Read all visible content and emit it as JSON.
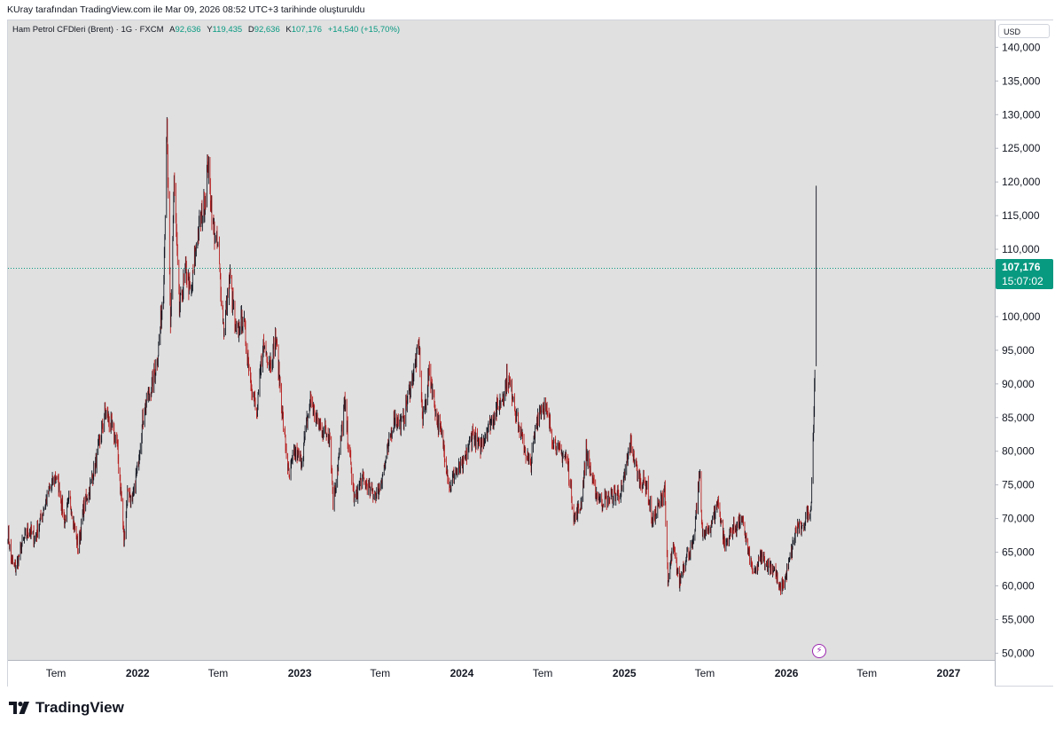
{
  "caption": "KUray tarafından TradingView.com ile Mar 09, 2026 08:52 UTC+3 tarihinde oluşturuldu",
  "legend": {
    "symbol": "Ham Petrol CFDleri (Brent) · 1G · FXCM",
    "open_label": "A",
    "open": "92,636",
    "high_label": "Y",
    "high": "119,435",
    "low_label": "D",
    "low": "92,636",
    "close_label": "K",
    "close": "107,176",
    "change": "+14,540 (+15,70%)"
  },
  "currency": "USD",
  "last_price": {
    "value": "107,176",
    "countdown": "15:07:02"
  },
  "brand": {
    "name": "TradingView"
  },
  "colors": {
    "up": "#089981",
    "down": "#f23645",
    "candle": "#131722",
    "background": "#e0e0e0",
    "price_line": "#089981"
  },
  "chart_data": {
    "type": "candlestick",
    "title": "Ham Petrol CFDleri (Brent)",
    "interval": "1G",
    "source": "FXCM",
    "unit": "USD",
    "ylim": [
      49000,
      144000
    ],
    "xlim": [
      "2021-03-15",
      "2027-04-15"
    ],
    "y_ticks": [
      {
        "value": 140000,
        "label": "140,000"
      },
      {
        "value": 135000,
        "label": "135,000"
      },
      {
        "value": 130000,
        "label": "130,000"
      },
      {
        "value": 125000,
        "label": "125,000"
      },
      {
        "value": 120000,
        "label": "120,000"
      },
      {
        "value": 115000,
        "label": "115,000"
      },
      {
        "value": 110000,
        "label": "110,000"
      },
      {
        "value": 105000,
        "label": ""
      },
      {
        "value": 100000,
        "label": "100,000"
      },
      {
        "value": 95000,
        "label": "95,000"
      },
      {
        "value": 90000,
        "label": "90,000"
      },
      {
        "value": 85000,
        "label": "85,000"
      },
      {
        "value": 80000,
        "label": "80,000"
      },
      {
        "value": 75000,
        "label": "75,000"
      },
      {
        "value": 70000,
        "label": "70,000"
      },
      {
        "value": 65000,
        "label": "65,000"
      },
      {
        "value": 60000,
        "label": "60,000"
      },
      {
        "value": 55000,
        "label": "55,000"
      },
      {
        "value": 50000,
        "label": "50,000"
      }
    ],
    "x_ticks": [
      {
        "date": "2021-07-01",
        "label": "Tem",
        "major": false
      },
      {
        "date": "2022-01-01",
        "label": "2022",
        "major": true
      },
      {
        "date": "2022-07-01",
        "label": "Tem",
        "major": false
      },
      {
        "date": "2023-01-01",
        "label": "2023",
        "major": true
      },
      {
        "date": "2023-07-01",
        "label": "Tem",
        "major": false
      },
      {
        "date": "2024-01-01",
        "label": "2024",
        "major": true
      },
      {
        "date": "2024-07-01",
        "label": "Tem",
        "major": false
      },
      {
        "date": "2025-01-01",
        "label": "2025",
        "major": true
      },
      {
        "date": "2025-07-01",
        "label": "Tem",
        "major": false
      },
      {
        "date": "2026-01-01",
        "label": "2026",
        "major": true
      },
      {
        "date": "2026-07-01",
        "label": "Tem",
        "major": false
      },
      {
        "date": "2027-01-01",
        "label": "2027",
        "major": true
      }
    ],
    "last_close": 107176,
    "series": [
      {
        "date": "2021-03-15",
        "close": 68000
      },
      {
        "date": "2021-03-22",
        "close": 64000
      },
      {
        "date": "2021-04-01",
        "close": 62500
      },
      {
        "date": "2021-04-15",
        "close": 66000
      },
      {
        "date": "2021-05-01",
        "close": 68500
      },
      {
        "date": "2021-05-15",
        "close": 67000
      },
      {
        "date": "2021-06-01",
        "close": 71000
      },
      {
        "date": "2021-06-15",
        "close": 74000
      },
      {
        "date": "2021-07-01",
        "close": 76500
      },
      {
        "date": "2021-07-10",
        "close": 74000
      },
      {
        "date": "2021-07-20",
        "close": 69500
      },
      {
        "date": "2021-08-01",
        "close": 73000
      },
      {
        "date": "2021-08-20",
        "close": 65500
      },
      {
        "date": "2021-09-01",
        "close": 71500
      },
      {
        "date": "2021-09-15",
        "close": 74500
      },
      {
        "date": "2021-10-01",
        "close": 79000
      },
      {
        "date": "2021-10-20",
        "close": 86000
      },
      {
        "date": "2021-11-01",
        "close": 84000
      },
      {
        "date": "2021-11-15",
        "close": 81500
      },
      {
        "date": "2021-11-26",
        "close": 72500
      },
      {
        "date": "2021-12-01",
        "close": 66500
      },
      {
        "date": "2021-12-10",
        "close": 74500
      },
      {
        "date": "2021-12-20",
        "close": 72000
      },
      {
        "date": "2022-01-01",
        "close": 78000
      },
      {
        "date": "2022-01-15",
        "close": 86000
      },
      {
        "date": "2022-02-01",
        "close": 89500
      },
      {
        "date": "2022-02-15",
        "close": 94000
      },
      {
        "date": "2022-02-28",
        "close": 104000
      },
      {
        "date": "2022-03-08",
        "close": 128000
      },
      {
        "date": "2022-03-16",
        "close": 98000
      },
      {
        "date": "2022-03-24",
        "close": 120000
      },
      {
        "date": "2022-04-05",
        "close": 101000
      },
      {
        "date": "2022-04-20",
        "close": 107000
      },
      {
        "date": "2022-05-01",
        "close": 103000
      },
      {
        "date": "2022-05-15",
        "close": 112000
      },
      {
        "date": "2022-06-01",
        "close": 117000
      },
      {
        "date": "2022-06-08",
        "close": 123000
      },
      {
        "date": "2022-06-20",
        "close": 113000
      },
      {
        "date": "2022-07-01",
        "close": 110000
      },
      {
        "date": "2022-07-14",
        "close": 98000
      },
      {
        "date": "2022-07-28",
        "close": 106000
      },
      {
        "date": "2022-08-10",
        "close": 97000
      },
      {
        "date": "2022-08-26",
        "close": 100000
      },
      {
        "date": "2022-09-10",
        "close": 92000
      },
      {
        "date": "2022-09-26",
        "close": 85000
      },
      {
        "date": "2022-10-10",
        "close": 96000
      },
      {
        "date": "2022-10-28",
        "close": 93000
      },
      {
        "date": "2022-11-08",
        "close": 97000
      },
      {
        "date": "2022-11-25",
        "close": 84000
      },
      {
        "date": "2022-12-08",
        "close": 76000
      },
      {
        "date": "2022-12-20",
        "close": 80000
      },
      {
        "date": "2023-01-05",
        "close": 78500
      },
      {
        "date": "2023-01-25",
        "close": 88000
      },
      {
        "date": "2023-02-10",
        "close": 84000
      },
      {
        "date": "2023-02-28",
        "close": 83000
      },
      {
        "date": "2023-03-10",
        "close": 82500
      },
      {
        "date": "2023-03-17",
        "close": 72500
      },
      {
        "date": "2023-04-01",
        "close": 80000
      },
      {
        "date": "2023-04-12",
        "close": 87000
      },
      {
        "date": "2023-05-04",
        "close": 72500
      },
      {
        "date": "2023-05-20",
        "close": 76000
      },
      {
        "date": "2023-06-10",
        "close": 74000
      },
      {
        "date": "2023-06-25",
        "close": 73500
      },
      {
        "date": "2023-07-15",
        "close": 79000
      },
      {
        "date": "2023-08-01",
        "close": 85000
      },
      {
        "date": "2023-08-20",
        "close": 84000
      },
      {
        "date": "2023-09-10",
        "close": 90500
      },
      {
        "date": "2023-09-27",
        "close": 95500
      },
      {
        "date": "2023-10-05",
        "close": 84000
      },
      {
        "date": "2023-10-20",
        "close": 92000
      },
      {
        "date": "2023-11-05",
        "close": 85000
      },
      {
        "date": "2023-11-20",
        "close": 81000
      },
      {
        "date": "2023-12-05",
        "close": 74500
      },
      {
        "date": "2023-12-15",
        "close": 76500
      },
      {
        "date": "2024-01-05",
        "close": 78000
      },
      {
        "date": "2024-01-25",
        "close": 82500
      },
      {
        "date": "2024-02-10",
        "close": 80500
      },
      {
        "date": "2024-02-28",
        "close": 83500
      },
      {
        "date": "2024-03-15",
        "close": 85500
      },
      {
        "date": "2024-04-01",
        "close": 88000
      },
      {
        "date": "2024-04-12",
        "close": 91000
      },
      {
        "date": "2024-04-25",
        "close": 88500
      },
      {
        "date": "2024-05-10",
        "close": 83000
      },
      {
        "date": "2024-06-03",
        "close": 77500
      },
      {
        "date": "2024-06-20",
        "close": 85500
      },
      {
        "date": "2024-07-05",
        "close": 87000
      },
      {
        "date": "2024-07-25",
        "close": 81500
      },
      {
        "date": "2024-08-10",
        "close": 79500
      },
      {
        "date": "2024-08-25",
        "close": 79000
      },
      {
        "date": "2024-09-10",
        "close": 70000
      },
      {
        "date": "2024-09-25",
        "close": 72000
      },
      {
        "date": "2024-10-07",
        "close": 80000
      },
      {
        "date": "2024-10-25",
        "close": 74500
      },
      {
        "date": "2024-11-10",
        "close": 72500
      },
      {
        "date": "2024-11-25",
        "close": 73000
      },
      {
        "date": "2024-12-10",
        "close": 73500
      },
      {
        "date": "2024-12-27",
        "close": 74000
      },
      {
        "date": "2025-01-15",
        "close": 81500
      },
      {
        "date": "2025-02-01",
        "close": 76000
      },
      {
        "date": "2025-02-20",
        "close": 75000
      },
      {
        "date": "2025-03-05",
        "close": 69500
      },
      {
        "date": "2025-03-20",
        "close": 72000
      },
      {
        "date": "2025-04-02",
        "close": 74500
      },
      {
        "date": "2025-04-09",
        "close": 60000
      },
      {
        "date": "2025-04-20",
        "close": 66000
      },
      {
        "date": "2025-05-05",
        "close": 60500
      },
      {
        "date": "2025-05-20",
        "close": 64500
      },
      {
        "date": "2025-06-05",
        "close": 66000
      },
      {
        "date": "2025-06-20",
        "close": 77000
      },
      {
        "date": "2025-06-26",
        "close": 67000
      },
      {
        "date": "2025-07-15",
        "close": 69000
      },
      {
        "date": "2025-07-31",
        "close": 72500
      },
      {
        "date": "2025-08-15",
        "close": 66000
      },
      {
        "date": "2025-09-01",
        "close": 68500
      },
      {
        "date": "2025-09-25",
        "close": 69500
      },
      {
        "date": "2025-10-10",
        "close": 64000
      },
      {
        "date": "2025-10-20",
        "close": 61500
      },
      {
        "date": "2025-11-05",
        "close": 64500
      },
      {
        "date": "2025-11-20",
        "close": 63000
      },
      {
        "date": "2025-12-05",
        "close": 62500
      },
      {
        "date": "2025-12-16",
        "close": 59500
      },
      {
        "date": "2025-12-30",
        "close": 61000
      },
      {
        "date": "2026-01-12",
        "close": 65000
      },
      {
        "date": "2026-01-25",
        "close": 69000
      },
      {
        "date": "2026-02-05",
        "close": 68000
      },
      {
        "date": "2026-02-15",
        "close": 70500
      },
      {
        "date": "2026-02-25",
        "close": 71500
      },
      {
        "date": "2026-03-02",
        "close": 82000
      },
      {
        "date": "2026-03-04",
        "close": 86000
      },
      {
        "date": "2026-03-06",
        "close": 92600
      },
      {
        "date": "2026-03-09",
        "close": 107176
      }
    ]
  }
}
